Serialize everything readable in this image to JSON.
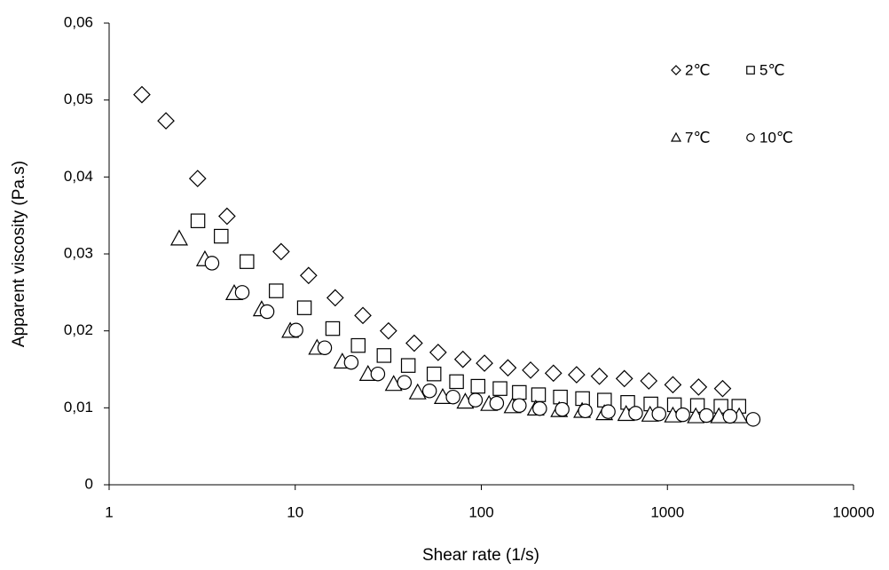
{
  "chart_data": {
    "type": "scatter",
    "xlabel": "Shear rate (1/s)",
    "ylabel": "Apparent viscosity (Pa.s)",
    "xscale": "log",
    "xlim": [
      1,
      10000
    ],
    "xticks": [
      1,
      10,
      100,
      1000,
      10000
    ],
    "ylim": [
      0,
      0.06
    ],
    "yticks": [
      0,
      {
        "value": 0.01,
        "label": "0,01"
      },
      {
        "value": 0.02,
        "label": "0,02"
      },
      {
        "value": 0.03,
        "label": "0,03"
      },
      {
        "value": 0.04,
        "label": "0,04"
      },
      {
        "value": 0.05,
        "label": "0,05"
      },
      {
        "value": 0.06,
        "label": "0,06"
      }
    ],
    "legend": "top-right",
    "series": [
      {
        "name": "2℃",
        "color": "#000000",
        "marker": "diamond",
        "x": [
          1.5,
          2.02,
          2.99,
          4.3,
          8.4,
          11.8,
          16.4,
          23.1,
          31.7,
          43.6,
          58.6,
          79.6,
          104,
          139,
          184,
          244,
          325,
          431,
          587,
          794,
          1070,
          1470,
          1980
        ],
        "values": [
          0.0507,
          0.0473,
          0.0398,
          0.0349,
          0.0303,
          0.0272,
          0.0243,
          0.022,
          0.02,
          0.0184,
          0.0172,
          0.0163,
          0.0158,
          0.0152,
          0.0149,
          0.0145,
          0.0143,
          0.0141,
          0.0138,
          0.0135,
          0.013,
          0.0127,
          0.0125
        ]
      },
      {
        "name": "5℃",
        "color": "#000000",
        "marker": "square",
        "x": [
          3.0,
          4.0,
          5.5,
          7.9,
          11.2,
          15.9,
          21.8,
          30,
          40.5,
          55.7,
          73.6,
          96,
          126,
          160,
          203,
          266,
          350,
          459,
          612,
          815,
          1090,
          1450,
          1940,
          2420
        ],
        "values": [
          0.0343,
          0.0323,
          0.029,
          0.0252,
          0.023,
          0.0203,
          0.0181,
          0.0168,
          0.0155,
          0.0144,
          0.0134,
          0.0128,
          0.0125,
          0.012,
          0.0117,
          0.0114,
          0.0112,
          0.011,
          0.0107,
          0.0105,
          0.0104,
          0.0103,
          0.0102,
          0.0102
        ]
      },
      {
        "name": "7℃",
        "color": "#000000",
        "marker": "triangle",
        "x": [
          2.38,
          3.27,
          4.7,
          6.6,
          9.4,
          13.1,
          17.9,
          24.6,
          33.8,
          45.5,
          62,
          82,
          110,
          147,
          196,
          262,
          348,
          458,
          600,
          807,
          1070,
          1420,
          1890,
          2430
        ],
        "values": [
          0.032,
          0.0293,
          0.0249,
          0.0228,
          0.02,
          0.0178,
          0.016,
          0.0144,
          0.0131,
          0.012,
          0.0114,
          0.0108,
          0.0105,
          0.0102,
          0.0099,
          0.0097,
          0.0096,
          0.0093,
          0.0092,
          0.0091,
          0.009,
          0.0089,
          0.0089,
          0.0089
        ]
      },
      {
        "name": "10℃",
        "color": "#000000",
        "marker": "circle",
        "x": [
          3.57,
          5.19,
          7.06,
          10.1,
          14.4,
          20.0,
          27.8,
          38.6,
          52.7,
          70.5,
          93,
          121,
          160,
          206,
          272,
          362,
          481,
          675,
          901,
          1210,
          1620,
          2170,
          2890
        ],
        "values": [
          0.0288,
          0.025,
          0.0225,
          0.0201,
          0.0178,
          0.0159,
          0.0144,
          0.0133,
          0.0122,
          0.0114,
          0.011,
          0.0106,
          0.0103,
          0.0099,
          0.0098,
          0.0096,
          0.0095,
          0.0093,
          0.0092,
          0.0091,
          0.009,
          0.0089,
          0.0085
        ]
      }
    ]
  }
}
